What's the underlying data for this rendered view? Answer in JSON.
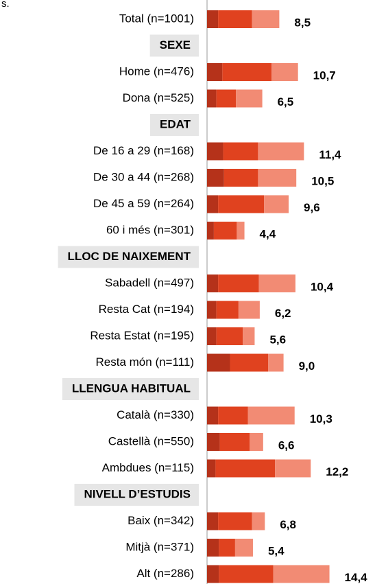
{
  "chart_data": {
    "type": "stacked-bar-horizontal",
    "subtitle": "s.",
    "categories": [
      "Total (n=1001)",
      "SEXE",
      "Home (n=476)",
      "Dona (n=525)",
      "EDAT",
      "De 16 a 29 (n=168)",
      "De 30 a 44 (n=268)",
      "De 45 a 59 (n=264)",
      "60 i més (n=301)",
      "LLOC DE NAIXEMENT",
      "Sabadell (n=497)",
      "Resta Cat (n=194)",
      "Resta Estat (n=195)",
      "Resta món (n=111)",
      "LLENGUA HABITUAL",
      "Català (n=330)",
      "Castellà (n=550)",
      "Ambdues (n=115)",
      "NIVELL D’ESTUDIS",
      "Baix (n=342)",
      "Mitjà (n=371)",
      "Alt (n=286)"
    ],
    "series": [
      {
        "color": "#b5321a",
        "values": [
          1.3,
          null,
          1.8,
          1.1,
          null,
          1.9,
          2.0,
          1.3,
          0.8,
          null,
          1.3,
          1.1,
          1.1,
          2.7,
          null,
          1.3,
          1.5,
          1.0,
          null,
          1.3,
          1.4,
          1.4
        ]
      },
      {
        "color": "#e0421f",
        "values": [
          4.0,
          null,
          5.8,
          2.3,
          null,
          4.1,
          4.0,
          5.4,
          2.7,
          null,
          4.8,
          2.6,
          3.1,
          4.5,
          null,
          3.5,
          3.5,
          7.0,
          null,
          4.0,
          1.9,
          6.4
        ]
      },
      {
        "color": "#f28b74",
        "values": [
          3.2,
          null,
          3.1,
          3.1,
          null,
          5.4,
          4.5,
          2.9,
          0.9,
          null,
          4.3,
          2.5,
          1.4,
          1.8,
          null,
          5.5,
          1.6,
          4.2,
          null,
          1.5,
          2.1,
          6.6
        ]
      }
    ],
    "totals": [
      8.5,
      null,
      10.7,
      6.5,
      null,
      11.4,
      10.5,
      9.6,
      4.4,
      null,
      10.4,
      6.2,
      5.6,
      9.0,
      null,
      10.3,
      6.6,
      12.2,
      null,
      6.8,
      5.4,
      14.4
    ],
    "value_labels": [
      "8,5",
      null,
      "10,7",
      "6,5",
      null,
      "11,4",
      "10,5",
      "9,6",
      "4,4",
      null,
      "10,4",
      "6,2",
      "5,6",
      "9,0",
      null,
      "10,3",
      "6,6",
      "12,2",
      null,
      "6,8",
      "5,4",
      "14,4"
    ],
    "xlim": [
      0,
      20
    ]
  }
}
